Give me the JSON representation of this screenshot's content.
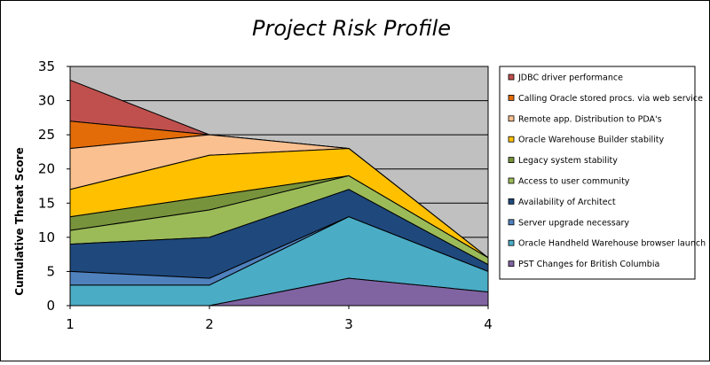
{
  "chart_data": {
    "type": "area",
    "stacked": true,
    "title": "Project Risk Profile",
    "xlabel": "",
    "ylabel": "Cumulative Threat Score",
    "x": [
      1,
      2,
      3,
      4
    ],
    "x_tick_labels": [
      "1",
      "2",
      "3",
      "4"
    ],
    "ylim": [
      0,
      35
    ],
    "y_ticks": [
      0,
      5,
      10,
      15,
      20,
      25,
      30,
      35
    ],
    "grid": true,
    "legend_position": "right",
    "plot_background": "#C0C0C0",
    "series": [
      {
        "name": "JDBC driver performance",
        "values": [
          6,
          0,
          0,
          0
        ],
        "color": "#C0504D"
      },
      {
        "name": "Calling Oracle stored procs. via web service",
        "values": [
          4,
          0,
          0,
          0
        ],
        "color": "#E36C09"
      },
      {
        "name": "Remote app. Distribution to PDA's",
        "values": [
          6,
          3,
          0,
          0
        ],
        "color": "#FAC090"
      },
      {
        "name": "Oracle Warehouse Builder stability",
        "values": [
          4,
          6,
          4,
          0
        ],
        "color": "#FFC000"
      },
      {
        "name": "Legacy system stability",
        "values": [
          2,
          2,
          0,
          0
        ],
        "color": "#77933C"
      },
      {
        "name": "Access to user community",
        "values": [
          2,
          4,
          2,
          1
        ],
        "color": "#9BBB59"
      },
      {
        "name": "Availability of Architect",
        "values": [
          4,
          6,
          4,
          1
        ],
        "color": "#1F497D"
      },
      {
        "name": "Server upgrade necessary",
        "values": [
          2,
          1,
          0,
          0
        ],
        "color": "#4F81BD"
      },
      {
        "name": "Oracle Handheld Warehouse browser launch",
        "values": [
          3,
          3,
          9,
          3
        ],
        "color": "#4BACC6"
      },
      {
        "name": "PST Changes for British Columbia",
        "values": [
          0,
          0,
          4,
          2
        ],
        "color": "#8064A2"
      }
    ]
  }
}
